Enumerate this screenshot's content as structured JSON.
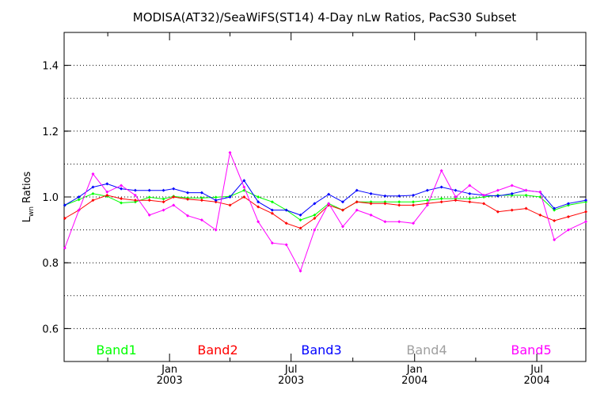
{
  "chart_data": {
    "type": "line",
    "title": "MODISA(AT32)/SeaWiFS(ST14) 4-Day nLw Ratios, PacS30 Subset",
    "ylabel_main": "L",
    "ylabel_sub": "wn",
    "ylabel_rest": " Ratios",
    "ylim": [
      0.5,
      1.5
    ],
    "y_ticks": [
      0.6,
      0.8,
      1.0,
      1.2,
      1.4
    ],
    "y_tick_labels": [
      "0.6",
      "0.8",
      "1.0",
      "1.2",
      "1.4"
    ],
    "grid_y": [
      0.6,
      0.7,
      0.8,
      0.9,
      1.0,
      1.1,
      1.2,
      1.3,
      1.4
    ],
    "xlim": [
      "2002-07-28",
      "2004-09-12"
    ],
    "x_ticks": [
      {
        "date": "2003-01-01",
        "month": "Jan",
        "year": "2003"
      },
      {
        "date": "2003-07-01",
        "month": "Jul",
        "year": "2003"
      },
      {
        "date": "2004-01-01",
        "month": "Jan",
        "year": "2004"
      },
      {
        "date": "2004-07-01",
        "month": "Jul",
        "year": "2004"
      }
    ],
    "legend": [
      {
        "name": "Band1",
        "color": "#00ff00"
      },
      {
        "name": "Band2",
        "color": "#ff0000"
      },
      {
        "name": "Band3",
        "color": "#0000ff"
      },
      {
        "name": "Band4",
        "color": "#a0a0a0"
      },
      {
        "name": "Band5",
        "color": "#ff00ff"
      }
    ],
    "x": [
      "2002-07-29",
      "2002-08-19",
      "2002-09-09",
      "2002-09-30",
      "2002-10-21",
      "2002-11-11",
      "2002-12-02",
      "2002-12-23",
      "2003-01-07",
      "2003-01-28",
      "2003-02-18",
      "2003-03-11",
      "2003-04-01",
      "2003-04-22",
      "2003-05-13",
      "2003-06-03",
      "2003-06-24",
      "2003-07-15",
      "2003-08-05",
      "2003-08-26",
      "2003-09-16",
      "2003-10-07",
      "2003-10-28",
      "2003-11-18",
      "2003-12-09",
      "2003-12-30",
      "2004-01-20",
      "2004-02-10",
      "2004-03-02",
      "2004-03-23",
      "2004-04-13",
      "2004-05-04",
      "2004-05-25",
      "2004-06-15",
      "2004-07-06",
      "2004-07-27",
      "2004-08-17",
      "2004-09-12"
    ],
    "series": [
      {
        "name": "Band1",
        "color": "#00ff00",
        "values": [
          0.975,
          0.992,
          1.01,
          1.002,
          0.982,
          0.985,
          0.999,
          0.994,
          1.002,
          0.997,
          0.997,
          0.999,
          1.002,
          1.02,
          1.0,
          0.985,
          0.96,
          0.93,
          0.945,
          0.98,
          0.96,
          0.985,
          0.985,
          0.985,
          0.985,
          0.985,
          0.99,
          0.995,
          0.995,
          0.995,
          1.0,
          1.005,
          1.005,
          1.005,
          1.0,
          0.96,
          0.975,
          0.985
        ]
      },
      {
        "name": "Band2",
        "color": "#ff0000",
        "values": [
          0.935,
          0.96,
          0.99,
          1.005,
          0.995,
          0.99,
          0.99,
          0.985,
          1.0,
          0.993,
          0.99,
          0.985,
          0.975,
          1.0,
          0.97,
          0.95,
          0.92,
          0.905,
          0.935,
          0.975,
          0.96,
          0.985,
          0.98,
          0.98,
          0.975,
          0.975,
          0.98,
          0.985,
          0.99,
          0.985,
          0.98,
          0.955,
          0.96,
          0.965,
          0.945,
          0.928,
          0.94,
          0.955
        ]
      },
      {
        "name": "Band3",
        "color": "#0000ff",
        "values": [
          0.975,
          1.0,
          1.03,
          1.04,
          1.025,
          1.02,
          1.02,
          1.02,
          1.025,
          1.013,
          1.013,
          0.99,
          1.0,
          1.05,
          0.985,
          0.96,
          0.96,
          0.945,
          0.98,
          1.008,
          0.985,
          1.02,
          1.01,
          1.003,
          1.003,
          1.005,
          1.02,
          1.03,
          1.02,
          1.01,
          1.005,
          1.003,
          1.01,
          1.02,
          1.015,
          0.965,
          0.98,
          0.99
        ]
      },
      {
        "name": "Band5",
        "color": "#ff00ff",
        "values": [
          0.845,
          0.96,
          1.07,
          1.015,
          1.035,
          1.005,
          0.945,
          0.96,
          0.975,
          0.943,
          0.93,
          0.9,
          1.135,
          1.03,
          0.925,
          0.86,
          0.855,
          0.775,
          0.9,
          0.98,
          0.91,
          0.96,
          0.945,
          0.925,
          0.925,
          0.92,
          0.975,
          1.08,
          1.0,
          1.035,
          1.005,
          1.02,
          1.035,
          1.02,
          1.015,
          0.87,
          0.9,
          0.925
        ]
      }
    ]
  }
}
